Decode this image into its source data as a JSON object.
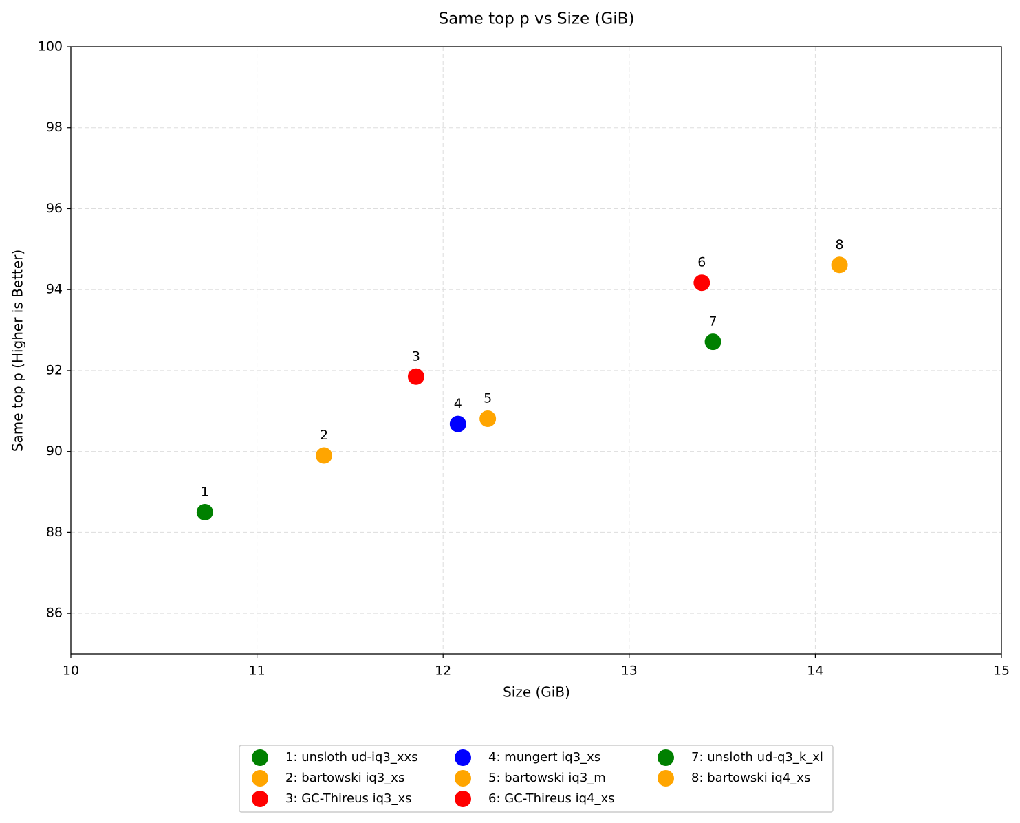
{
  "chart_data": {
    "type": "scatter",
    "title": "Same top p vs Size (GiB)",
    "x_label": "Size (GiB)",
    "y_label": "Same top p (Higher is Better)",
    "xlim": [
      10,
      15
    ],
    "xticks": [
      10,
      11,
      12,
      13,
      14,
      15
    ],
    "ylim": [
      85,
      100
    ],
    "yticks": [
      86,
      88,
      90,
      92,
      94,
      96,
      98,
      100
    ],
    "grid": true,
    "legend": "bottom",
    "series": [
      {
        "name": "1: unsloth ud-iq3_xxs",
        "label": "1",
        "color": "green",
        "x": [
          10.72
        ],
        "values": [
          88.5
        ]
      },
      {
        "name": "2: bartowski iq3_xs",
        "label": "2",
        "color": "orange",
        "x": [
          11.36
        ],
        "values": [
          89.9
        ]
      },
      {
        "name": "3: GC-Thireus iq3_xs",
        "label": "3",
        "color": "red",
        "x": [
          11.855
        ],
        "values": [
          91.85
        ]
      },
      {
        "name": "4: mungert iq3_xs",
        "label": "4",
        "color": "blue",
        "x": [
          12.08
        ],
        "values": [
          90.68
        ]
      },
      {
        "name": "5: bartowski iq3_m",
        "label": "5",
        "color": "orange",
        "x": [
          12.24
        ],
        "values": [
          90.81
        ]
      },
      {
        "name": "6: GC-Thireus iq4_xs",
        "label": "6",
        "color": "red",
        "x": [
          13.39
        ],
        "values": [
          94.17
        ]
      },
      {
        "name": "7: unsloth ud-q3_k_xl",
        "label": "7",
        "color": "green",
        "x": [
          13.45
        ],
        "values": [
          92.71
        ]
      },
      {
        "name": "8: bartowski iq4_xs",
        "label": "8",
        "color": "orange",
        "x": [
          14.13
        ],
        "values": [
          94.61
        ]
      }
    ]
  }
}
